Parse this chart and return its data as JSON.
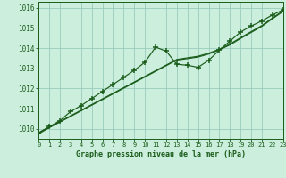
{
  "x": [
    0,
    1,
    2,
    3,
    4,
    5,
    6,
    7,
    8,
    9,
    10,
    11,
    12,
    13,
    14,
    15,
    16,
    17,
    18,
    19,
    20,
    21,
    22,
    23
  ],
  "y_jagged": [
    1009.8,
    1010.1,
    1010.4,
    1010.85,
    1011.15,
    1011.5,
    1011.85,
    1012.2,
    1012.55,
    1012.9,
    1013.3,
    1014.05,
    1013.85,
    1013.2,
    1013.15,
    1013.05,
    1013.4,
    1013.9,
    1014.35,
    1014.8,
    1015.1,
    1015.35,
    1015.65,
    1015.9
  ],
  "y_smooth1": [
    1009.8,
    1010.08,
    1010.36,
    1010.64,
    1010.92,
    1011.2,
    1011.48,
    1011.76,
    1012.04,
    1012.32,
    1012.6,
    1012.88,
    1013.16,
    1013.44,
    1013.52,
    1013.6,
    1013.75,
    1013.95,
    1014.2,
    1014.52,
    1014.82,
    1015.12,
    1015.5,
    1015.85
  ],
  "y_smooth2": [
    1009.75,
    1010.05,
    1010.33,
    1010.61,
    1010.89,
    1011.17,
    1011.45,
    1011.73,
    1012.01,
    1012.29,
    1012.57,
    1012.85,
    1013.13,
    1013.41,
    1013.48,
    1013.56,
    1013.71,
    1013.91,
    1014.16,
    1014.48,
    1014.78,
    1015.08,
    1015.46,
    1015.82
  ],
  "background_color": "#cceedd",
  "grid_color": "#99ccbb",
  "line_color": "#1a5c1a",
  "xlabel": "Graphe pression niveau de la mer (hPa)",
  "xlim": [
    0,
    23
  ],
  "ylim": [
    1009.5,
    1016.3
  ],
  "yticks": [
    1010,
    1011,
    1012,
    1013,
    1014,
    1015,
    1016
  ],
  "xticks": [
    0,
    1,
    2,
    3,
    4,
    5,
    6,
    7,
    8,
    9,
    10,
    11,
    12,
    13,
    14,
    15,
    16,
    17,
    18,
    19,
    20,
    21,
    22,
    23
  ]
}
